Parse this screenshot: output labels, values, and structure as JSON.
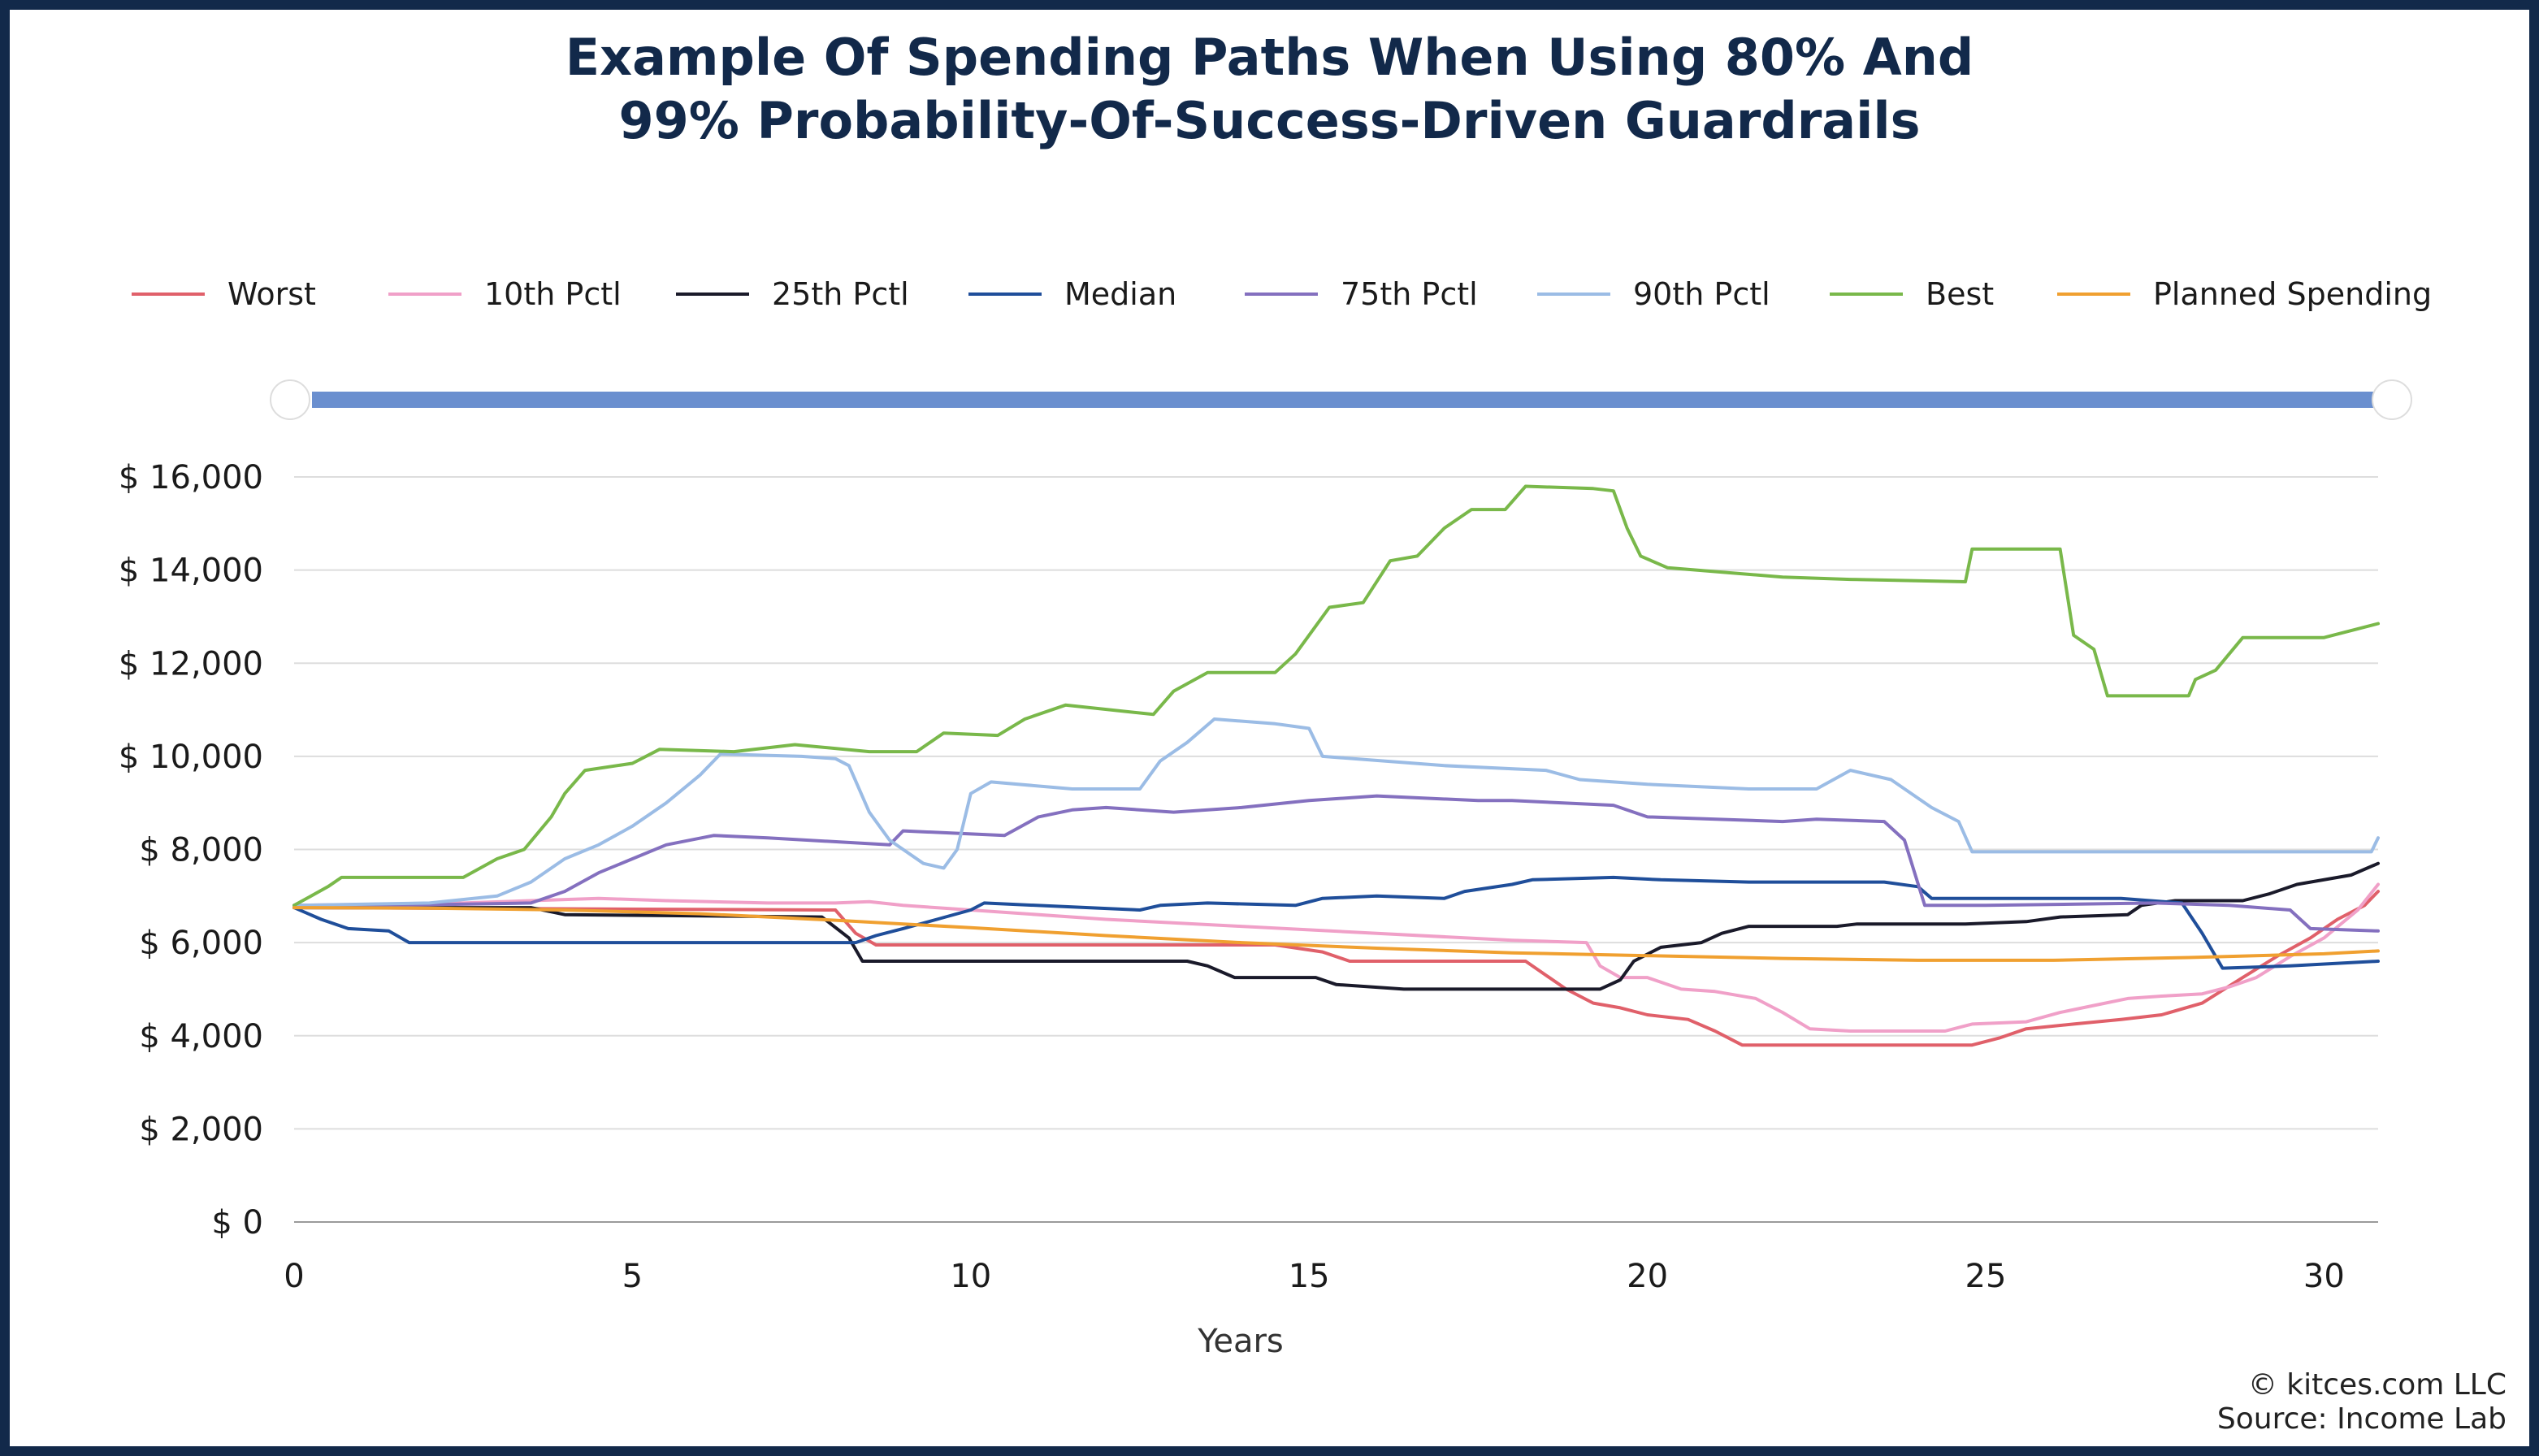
{
  "title_line1": "Example Of Spending Paths When Using 80% And",
  "title_line2": "99% Probability-Of-Success-Driven Guardrails",
  "credit": "© kitces.com LLC",
  "source": "Source: Income Lab",
  "chart_data": {
    "type": "line",
    "title": "Example Of Spending Paths When Using 80% And 99% Probability-Of-Success-Driven Guardrails",
    "xlabel": "Years",
    "ylabel": "",
    "xlim": [
      0,
      30.8
    ],
    "ylim": [
      0,
      16000
    ],
    "x_ticks": [
      0,
      5,
      10,
      15,
      20,
      25,
      30
    ],
    "y_ticks": [
      0,
      2000,
      4000,
      6000,
      8000,
      10000,
      12000,
      14000,
      16000
    ],
    "y_tick_labels": [
      "$ 0",
      "$ 2,000",
      "$ 4,000",
      "$ 6,000",
      "$ 8,000",
      "$ 10,000",
      "$ 12,000",
      "$ 14,000",
      "$ 16,000"
    ],
    "grid": "horizontal",
    "legend_position": "top",
    "range_slider_color": "#6a8fcf",
    "series": [
      {
        "name": "Worst",
        "color": "#e0606a",
        "points": [
          [
            0,
            6750
          ],
          [
            8,
            6700
          ],
          [
            8.3,
            6200
          ],
          [
            8.6,
            5950
          ],
          [
            12,
            5950
          ],
          [
            14.5,
            5950
          ],
          [
            15.2,
            5800
          ],
          [
            15.6,
            5600
          ],
          [
            18.2,
            5600
          ],
          [
            18.8,
            5000
          ],
          [
            19.2,
            4700
          ],
          [
            19.6,
            4600
          ],
          [
            20,
            4450
          ],
          [
            20.6,
            4350
          ],
          [
            21,
            4100
          ],
          [
            21.4,
            3800
          ],
          [
            22,
            3800
          ],
          [
            23,
            3800
          ],
          [
            24.8,
            3800
          ],
          [
            25.2,
            3950
          ],
          [
            25.6,
            4150
          ],
          [
            26.3,
            4250
          ],
          [
            27,
            4350
          ],
          [
            27.6,
            4450
          ],
          [
            28.2,
            4700
          ],
          [
            28.8,
            5250
          ],
          [
            29.3,
            5700
          ],
          [
            29.8,
            6100
          ],
          [
            30.2,
            6500
          ],
          [
            30.6,
            6800
          ],
          [
            30.8,
            7100
          ]
        ]
      },
      {
        "name": "10th Pctl",
        "color": "#f0a0c8",
        "points": [
          [
            0,
            6800
          ],
          [
            2.5,
            6850
          ],
          [
            3.5,
            6900
          ],
          [
            4.5,
            6950
          ],
          [
            5.5,
            6900
          ],
          [
            7,
            6850
          ],
          [
            8,
            6850
          ],
          [
            8.5,
            6880
          ],
          [
            9,
            6800
          ],
          [
            10,
            6700
          ],
          [
            12,
            6500
          ],
          [
            14,
            6350
          ],
          [
            16,
            6200
          ],
          [
            18,
            6050
          ],
          [
            19.1,
            6000
          ],
          [
            19.3,
            5500
          ],
          [
            19.6,
            5250
          ],
          [
            20,
            5250
          ],
          [
            20.5,
            5000
          ],
          [
            21,
            4950
          ],
          [
            21.6,
            4800
          ],
          [
            22,
            4500
          ],
          [
            22.4,
            4150
          ],
          [
            23,
            4100
          ],
          [
            24.4,
            4100
          ],
          [
            24.8,
            4250
          ],
          [
            25.6,
            4300
          ],
          [
            26.1,
            4500
          ],
          [
            26.6,
            4650
          ],
          [
            27.1,
            4800
          ],
          [
            27.6,
            4850
          ],
          [
            28.2,
            4900
          ],
          [
            28.6,
            5050
          ],
          [
            29,
            5250
          ],
          [
            29.5,
            5700
          ],
          [
            30,
            6100
          ],
          [
            30.5,
            6700
          ],
          [
            30.8,
            7250
          ]
        ]
      },
      {
        "name": "25th Pctl",
        "color": "#1a1a2a",
        "points": [
          [
            0,
            6750
          ],
          [
            3.5,
            6750
          ],
          [
            4,
            6600
          ],
          [
            7.8,
            6550
          ],
          [
            8.2,
            6100
          ],
          [
            8.4,
            5600
          ],
          [
            9,
            5600
          ],
          [
            12.3,
            5600
          ],
          [
            13.2,
            5600
          ],
          [
            13.5,
            5500
          ],
          [
            13.9,
            5250
          ],
          [
            15.1,
            5250
          ],
          [
            15.4,
            5100
          ],
          [
            16.4,
            5000
          ],
          [
            18.5,
            5000
          ],
          [
            19.3,
            5000
          ],
          [
            19.6,
            5200
          ],
          [
            19.8,
            5600
          ],
          [
            20.2,
            5900
          ],
          [
            20.8,
            6000
          ],
          [
            21.1,
            6200
          ],
          [
            21.5,
            6350
          ],
          [
            22.8,
            6350
          ],
          [
            23.1,
            6400
          ],
          [
            24.3,
            6400
          ],
          [
            24.7,
            6400
          ],
          [
            25.6,
            6450
          ],
          [
            26.1,
            6550
          ],
          [
            27.1,
            6600
          ],
          [
            27.3,
            6800
          ],
          [
            27.8,
            6900
          ],
          [
            28.8,
            6900
          ],
          [
            29.2,
            7050
          ],
          [
            29.6,
            7250
          ],
          [
            30.4,
            7450
          ],
          [
            30.8,
            7700
          ]
        ]
      },
      {
        "name": "Median",
        "color": "#1f4e9a",
        "points": [
          [
            0,
            6750
          ],
          [
            0.4,
            6500
          ],
          [
            0.8,
            6300
          ],
          [
            1.4,
            6250
          ],
          [
            1.7,
            6000
          ],
          [
            3,
            6000
          ],
          [
            7,
            6000
          ],
          [
            8.3,
            6000
          ],
          [
            8.6,
            6150
          ],
          [
            9,
            6300
          ],
          [
            9.5,
            6500
          ],
          [
            10,
            6700
          ],
          [
            10.2,
            6850
          ],
          [
            12.5,
            6700
          ],
          [
            12.8,
            6800
          ],
          [
            13.5,
            6850
          ],
          [
            14.8,
            6800
          ],
          [
            15.2,
            6950
          ],
          [
            16,
            7000
          ],
          [
            17,
            6950
          ],
          [
            17.3,
            7100
          ],
          [
            18,
            7250
          ],
          [
            18.3,
            7350
          ],
          [
            19.5,
            7400
          ],
          [
            20.2,
            7350
          ],
          [
            21.5,
            7300
          ],
          [
            22.3,
            7300
          ],
          [
            23.5,
            7300
          ],
          [
            24,
            7200
          ],
          [
            24.2,
            6950
          ],
          [
            25,
            6950
          ],
          [
            27,
            6950
          ],
          [
            27.9,
            6850
          ],
          [
            28.2,
            6200
          ],
          [
            28.5,
            5450
          ],
          [
            29.5,
            5500
          ],
          [
            30.8,
            5600
          ]
        ]
      },
      {
        "name": "75th Pctl",
        "color": "#8470bf",
        "points": [
          [
            0,
            6800
          ],
          [
            1.5,
            6800
          ],
          [
            3.5,
            6850
          ],
          [
            4,
            7100
          ],
          [
            4.5,
            7500
          ],
          [
            5,
            7800
          ],
          [
            5.5,
            8100
          ],
          [
            6.2,
            8300
          ],
          [
            7,
            8250
          ],
          [
            8.8,
            8100
          ],
          [
            9,
            8400
          ],
          [
            10.5,
            8300
          ],
          [
            11,
            8700
          ],
          [
            11.5,
            8850
          ],
          [
            12,
            8900
          ],
          [
            13,
            8800
          ],
          [
            14,
            8900
          ],
          [
            15,
            9050
          ],
          [
            16,
            9150
          ],
          [
            17.5,
            9050
          ],
          [
            18,
            9050
          ],
          [
            19.5,
            8950
          ],
          [
            20,
            8700
          ],
          [
            22,
            8600
          ],
          [
            22.5,
            8650
          ],
          [
            23.5,
            8600
          ],
          [
            23.8,
            8200
          ],
          [
            24.1,
            6800
          ],
          [
            25,
            6800
          ],
          [
            27.5,
            6850
          ],
          [
            28.6,
            6800
          ],
          [
            29.5,
            6700
          ],
          [
            29.8,
            6300
          ],
          [
            30.8,
            6250
          ]
        ]
      },
      {
        "name": "90th Pctl",
        "color": "#9bbce5",
        "points": [
          [
            0,
            6800
          ],
          [
            2,
            6850
          ],
          [
            3,
            7000
          ],
          [
            3.5,
            7300
          ],
          [
            4,
            7800
          ],
          [
            4.5,
            8100
          ],
          [
            5,
            8500
          ],
          [
            5.5,
            9000
          ],
          [
            6,
            9600
          ],
          [
            6.3,
            10050
          ],
          [
            7.5,
            10000
          ],
          [
            8,
            9950
          ],
          [
            8.2,
            9800
          ],
          [
            8.5,
            8800
          ],
          [
            8.8,
            8200
          ],
          [
            9.3,
            7700
          ],
          [
            9.6,
            7600
          ],
          [
            9.8,
            8000
          ],
          [
            10,
            9200
          ],
          [
            10.3,
            9450
          ],
          [
            11.5,
            9300
          ],
          [
            12.5,
            9300
          ],
          [
            12.8,
            9900
          ],
          [
            13.2,
            10300
          ],
          [
            13.6,
            10800
          ],
          [
            14.5,
            10700
          ],
          [
            15,
            10600
          ],
          [
            15.2,
            10000
          ],
          [
            17,
            9800
          ],
          [
            18.5,
            9700
          ],
          [
            19,
            9500
          ],
          [
            20,
            9400
          ],
          [
            21.5,
            9300
          ],
          [
            22.5,
            9300
          ],
          [
            23,
            9700
          ],
          [
            23.6,
            9500
          ],
          [
            24.2,
            8900
          ],
          [
            24.6,
            8600
          ],
          [
            24.8,
            7950
          ],
          [
            27,
            7950
          ],
          [
            30.7,
            7950
          ],
          [
            30.8,
            8250
          ]
        ]
      },
      {
        "name": "Best",
        "color": "#79b84a",
        "points": [
          [
            0,
            6800
          ],
          [
            0.5,
            7200
          ],
          [
            0.7,
            7400
          ],
          [
            2.5,
            7400
          ],
          [
            3,
            7800
          ],
          [
            3.4,
            8000
          ],
          [
            3.8,
            8700
          ],
          [
            4,
            9200
          ],
          [
            4.3,
            9700
          ],
          [
            5,
            9850
          ],
          [
            5.4,
            10150
          ],
          [
            6.5,
            10100
          ],
          [
            7.4,
            10250
          ],
          [
            8.5,
            10100
          ],
          [
            9.2,
            10100
          ],
          [
            9.6,
            10500
          ],
          [
            10.4,
            10450
          ],
          [
            10.8,
            10800
          ],
          [
            11.4,
            11100
          ],
          [
            12.7,
            10900
          ],
          [
            13,
            11400
          ],
          [
            13.5,
            11800
          ],
          [
            14.5,
            11800
          ],
          [
            14.8,
            12200
          ],
          [
            15.1,
            12800
          ],
          [
            15.3,
            13200
          ],
          [
            15.8,
            13300
          ],
          [
            16.2,
            14200
          ],
          [
            16.6,
            14300
          ],
          [
            17,
            14900
          ],
          [
            17.4,
            15300
          ],
          [
            17.9,
            15300
          ],
          [
            18.2,
            15800
          ],
          [
            19.2,
            15750
          ],
          [
            19.5,
            15700
          ],
          [
            19.7,
            14900
          ],
          [
            19.9,
            14300
          ],
          [
            20.3,
            14050
          ],
          [
            22,
            13850
          ],
          [
            23,
            13800
          ],
          [
            24.7,
            13750
          ],
          [
            24.8,
            14450
          ],
          [
            26.1,
            14450
          ],
          [
            26.3,
            12600
          ],
          [
            26.6,
            12300
          ],
          [
            26.8,
            11300
          ],
          [
            28,
            11300
          ],
          [
            28.1,
            11650
          ],
          [
            28.4,
            11850
          ],
          [
            28.8,
            12550
          ],
          [
            30,
            12550
          ],
          [
            30.8,
            12850
          ]
        ]
      },
      {
        "name": "Planned Spending",
        "color": "#f0a030",
        "points": [
          [
            0,
            6750
          ],
          [
            2,
            6740
          ],
          [
            4,
            6700
          ],
          [
            6,
            6620
          ],
          [
            8,
            6480
          ],
          [
            10,
            6320
          ],
          [
            12,
            6150
          ],
          [
            14,
            6000
          ],
          [
            16,
            5880
          ],
          [
            18,
            5780
          ],
          [
            20,
            5720
          ],
          [
            22,
            5660
          ],
          [
            24,
            5620
          ],
          [
            26,
            5620
          ],
          [
            28,
            5680
          ],
          [
            30,
            5760
          ],
          [
            30.8,
            5820
          ]
        ]
      }
    ]
  }
}
